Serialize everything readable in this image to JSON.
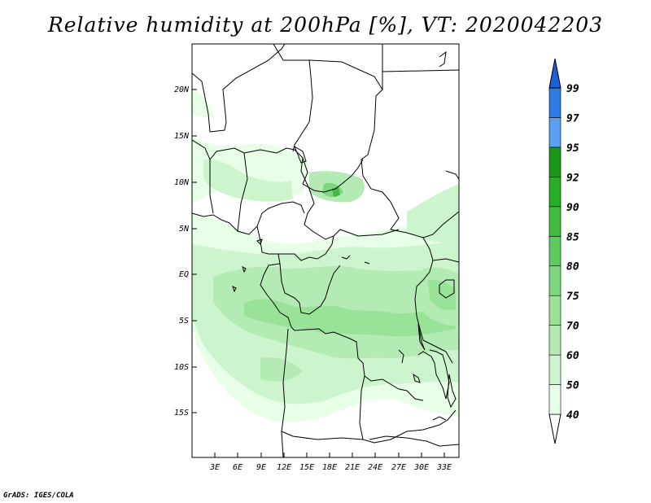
{
  "title": "Relative humidity at 200hPa [%], VT: 2020042203",
  "credit": "GrADS: IGES/COLA",
  "lat_labels": [
    "20N",
    "15N",
    "10N",
    "5N",
    "EQ",
    "5S",
    "10S",
    "15S"
  ],
  "lon_labels": [
    "3E",
    "6E",
    "9E",
    "12E",
    "15E",
    "18E",
    "21E",
    "24E",
    "27E",
    "30E",
    "33E"
  ],
  "colorbar": {
    "levels": [
      "40",
      "50",
      "60",
      "70",
      "75",
      "80",
      "85",
      "90",
      "92",
      "95",
      "97",
      "99"
    ],
    "colors": [
      "#e6ffe6",
      "#cdf5cd",
      "#b4ebb4",
      "#98e398",
      "#7dd87d",
      "#5fcb5f",
      "#41bc41",
      "#28ad28",
      "#1a961a",
      "#5aa0f0",
      "#2e7ce6",
      "#1f5fd6"
    ]
  }
}
